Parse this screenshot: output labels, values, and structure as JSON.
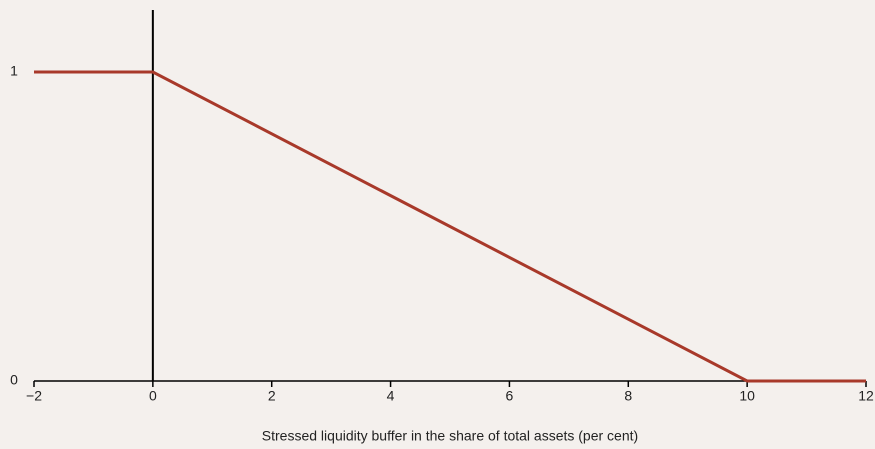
{
  "chart_data": {
    "type": "line",
    "x_label": "Stressed liquidity buffer in the share of total assets (per cent)",
    "x": [
      -2,
      0,
      10,
      12
    ],
    "values": [
      1,
      1,
      0,
      0
    ],
    "color": "#a8392a",
    "xlim": [
      -2,
      12
    ],
    "xticks": [
      {
        "value": -2,
        "label": "−2"
      },
      0,
      2,
      4,
      6,
      8,
      10,
      12
    ],
    "ylim": [
      0,
      1
    ],
    "yticks": [
      0,
      1
    ]
  }
}
